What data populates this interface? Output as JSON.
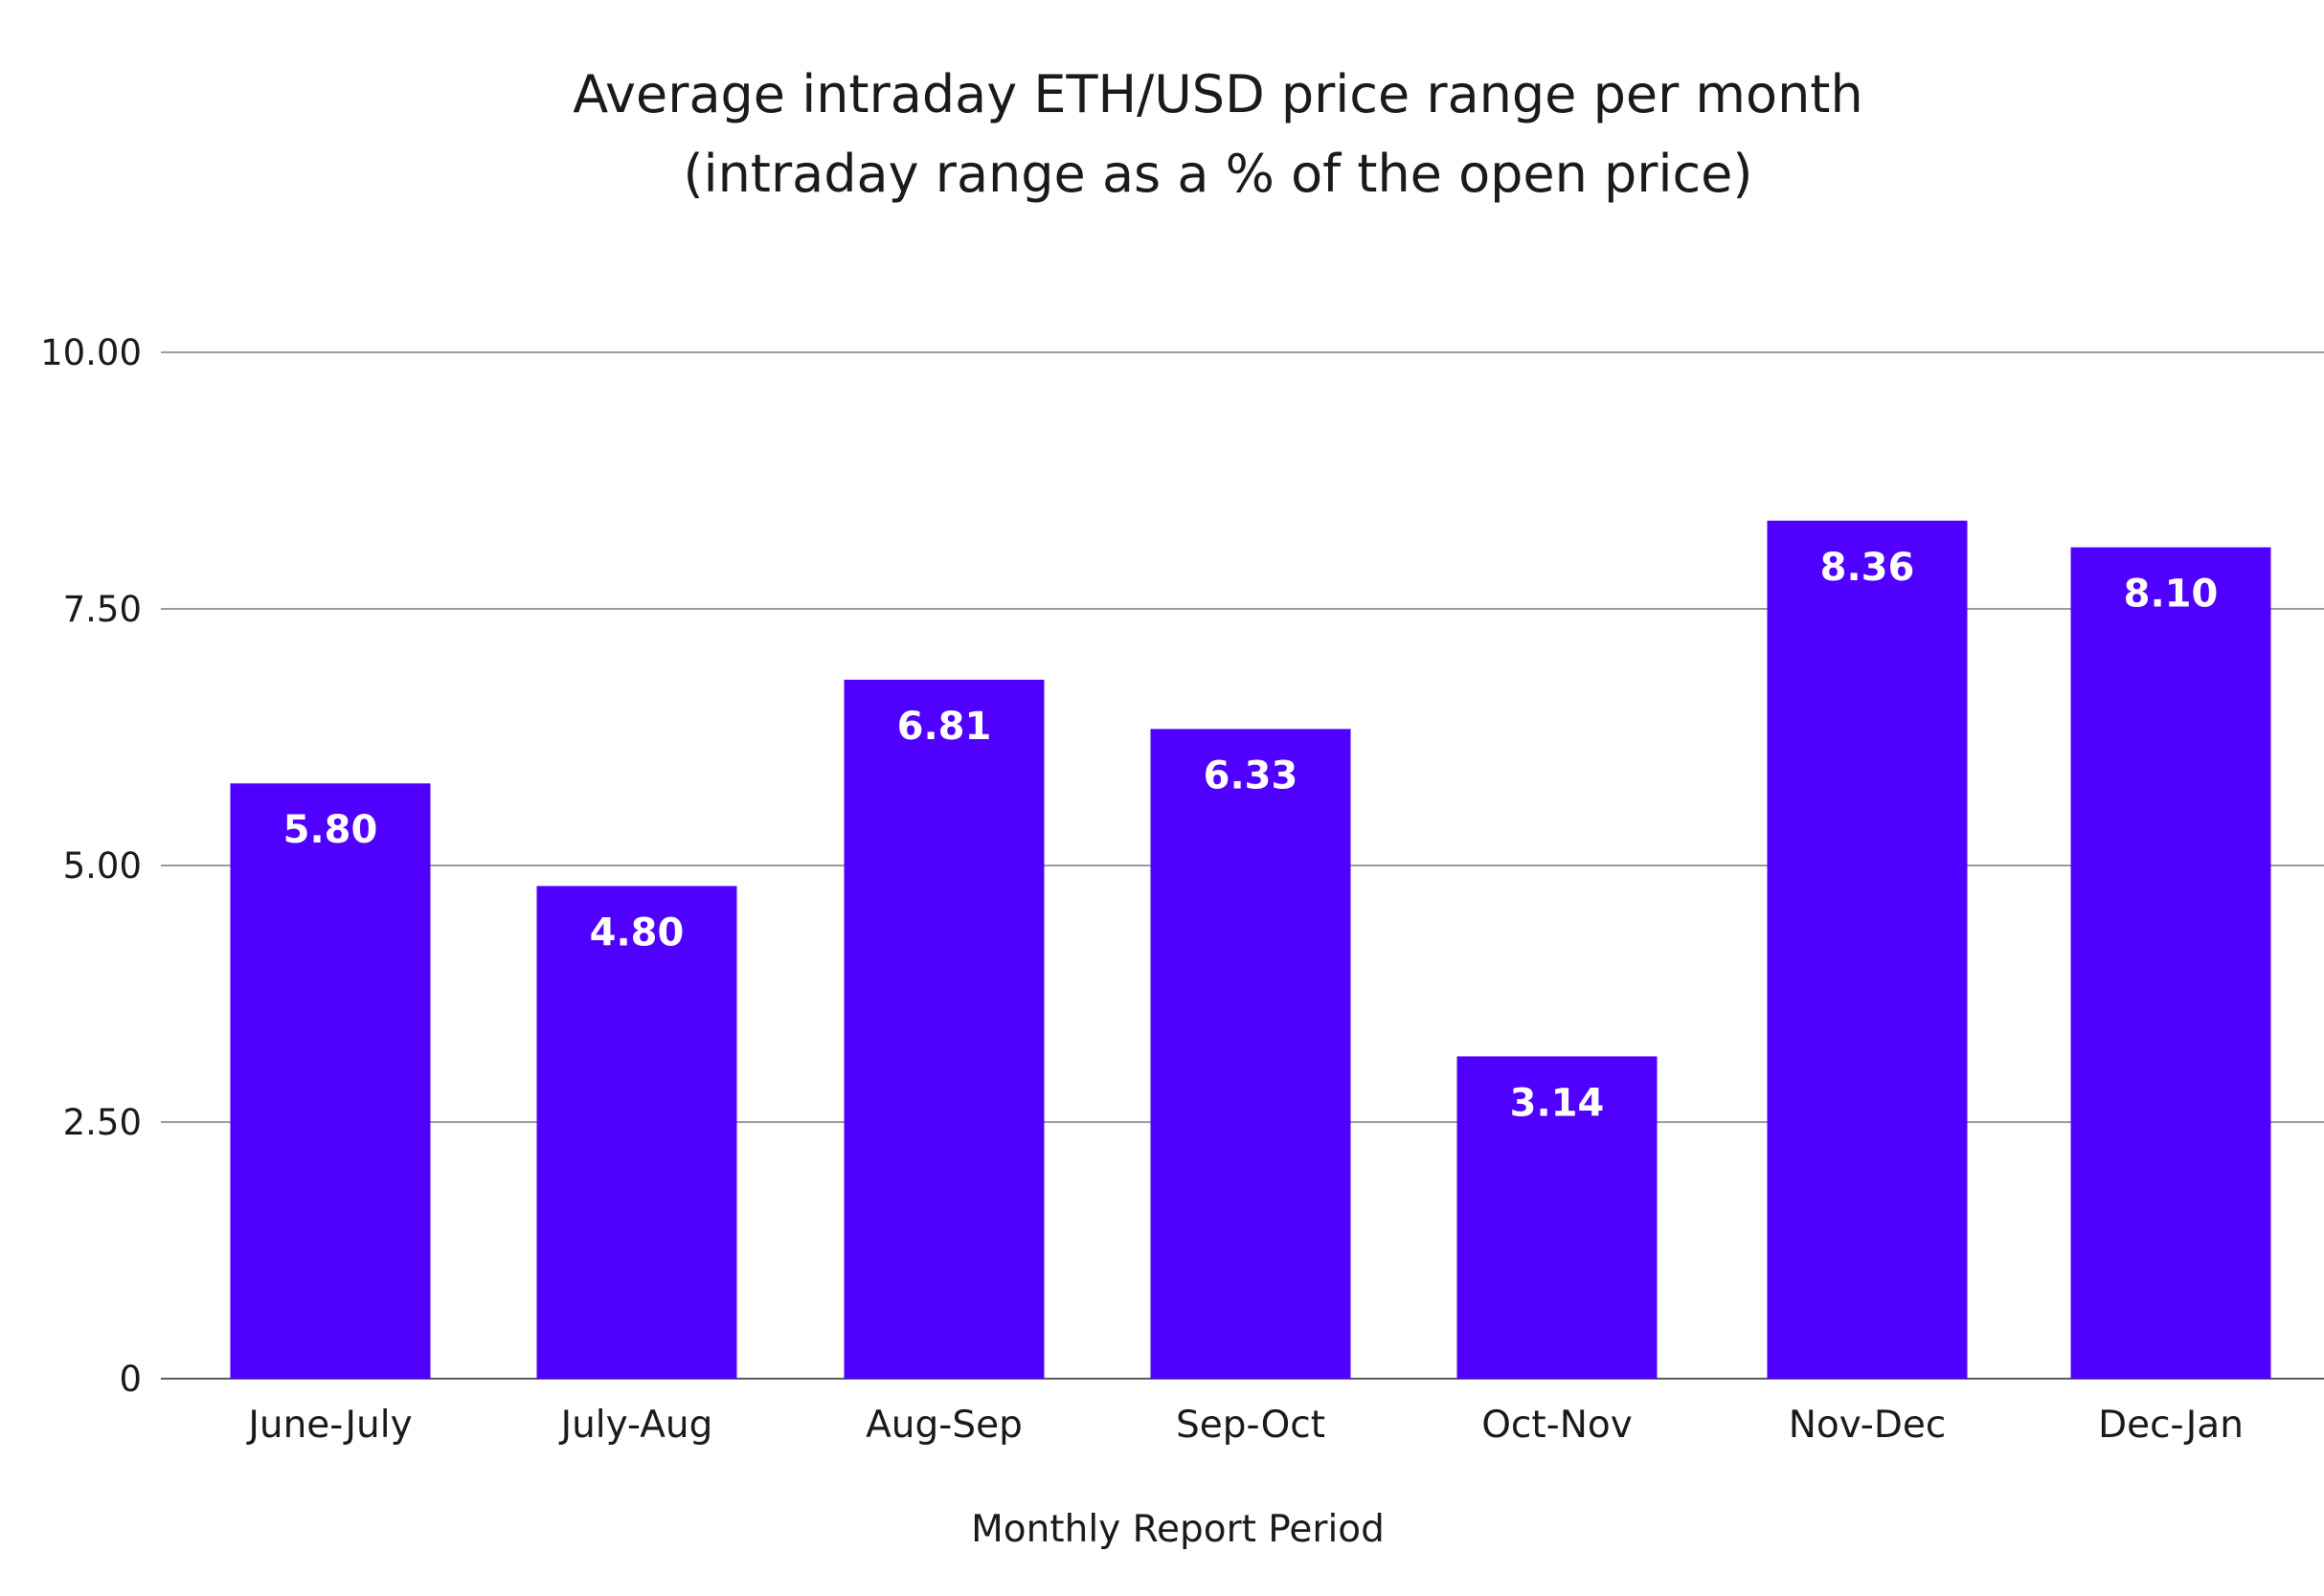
{
  "chart_data": {
    "type": "bar",
    "title": "Average intraday ETH/USD price range per month",
    "subtitle": "(intraday range as a % of the open price)",
    "xlabel": "Monthly Report Period",
    "ylabel": "",
    "categories": [
      "June-July",
      "July-Aug",
      "Aug-Sep",
      "Sep-Oct",
      "Oct-Nov",
      "Nov-Dec",
      "Dec-Jan"
    ],
    "values": [
      5.8,
      4.8,
      6.81,
      6.33,
      3.14,
      8.36,
      8.1
    ],
    "value_labels": [
      "5.80",
      "4.80",
      "6.81",
      "6.33",
      "3.14",
      "8.36",
      "8.10"
    ],
    "ylim": [
      0,
      10
    ],
    "yticks": [
      0,
      2.5,
      5,
      7.5,
      10
    ],
    "ytick_labels": [
      "0",
      "2.50",
      "5.00",
      "7.50",
      "10.00"
    ],
    "grid": true,
    "legend": "none",
    "bar_color": "#5000ff"
  }
}
